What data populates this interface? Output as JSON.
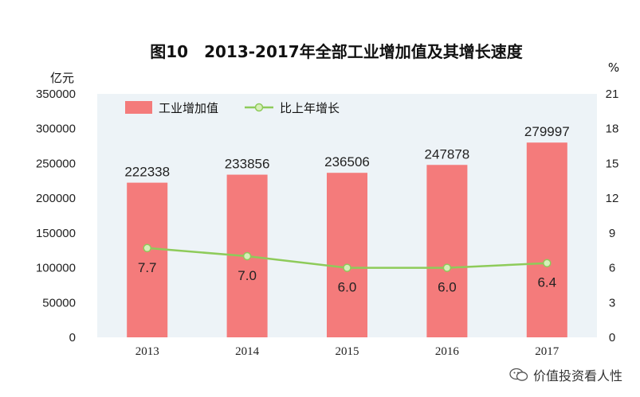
{
  "chart_data": {
    "type": "bar+line",
    "title": "图10　2013-2017年全部工业增加值及其增长速度",
    "categories": [
      "2013",
      "2014",
      "2015",
      "2016",
      "2017"
    ],
    "series": [
      {
        "name": "工业增加值",
        "type": "bar",
        "axis": "left",
        "values": [
          222338,
          233856,
          236506,
          247878,
          279997
        ]
      },
      {
        "name": "比上年增长",
        "type": "line",
        "axis": "right",
        "values": [
          7.7,
          7.0,
          6.0,
          6.0,
          6.4
        ]
      }
    ],
    "bar_labels": [
      "222338",
      "233856",
      "236506",
      "247878",
      "279997"
    ],
    "line_labels": [
      "7.7",
      "7.0",
      "6.0",
      "6.0",
      "6.4"
    ],
    "y_left": {
      "label": "亿元",
      "ylim": [
        0,
        350000
      ],
      "ticks": [
        "0",
        "50000",
        "100000",
        "150000",
        "200000",
        "250000",
        "300000",
        "350000"
      ]
    },
    "y_right": {
      "label": "%",
      "ylim": [
        0,
        21
      ],
      "ticks": [
        "0",
        "3",
        "6",
        "9",
        "12",
        "15",
        "18",
        "21"
      ]
    },
    "legend": {
      "position": "top-left",
      "entries": [
        "工业增加值",
        "比上年增长"
      ]
    },
    "colors": {
      "bar": "#f47b7b",
      "line": "#8ecb5a",
      "marker_fill": "#d6efb9",
      "plot_bg": "#edf3f7"
    }
  },
  "watermark": {
    "text": "价值投资看人性",
    "icon": "wechat-icon"
  }
}
